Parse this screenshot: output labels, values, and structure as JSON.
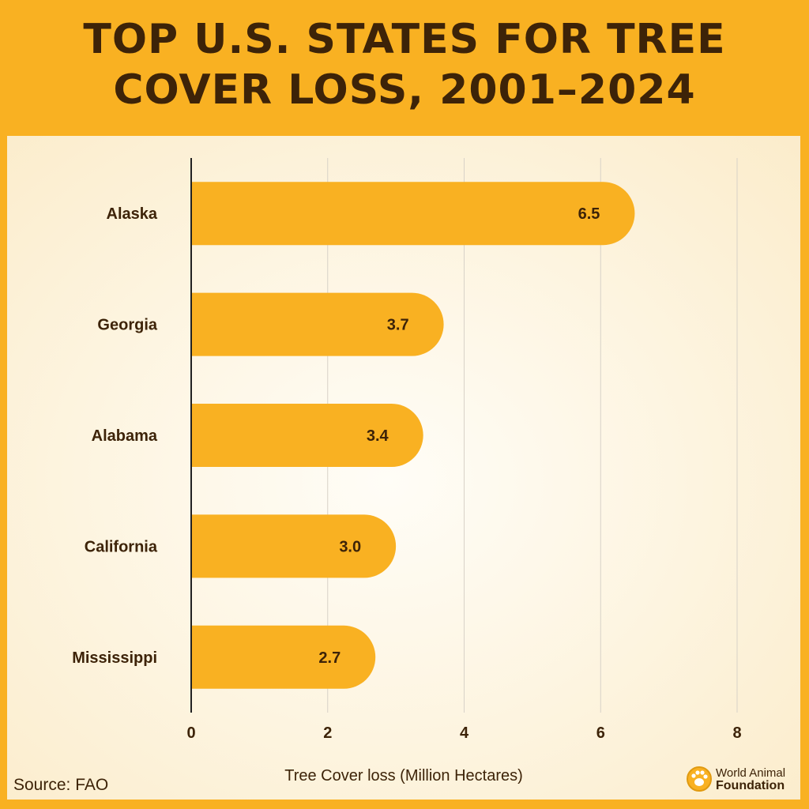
{
  "header": {
    "title": "TOP U.S. STATES FOR TREE COVER LOSS, 2001–2024"
  },
  "footer": {
    "source": "Source: FAO"
  },
  "logo": {
    "line1": "World Animal",
    "line2": "Foundation",
    "icon": "paw-dog-logo-icon"
  },
  "colors": {
    "bar": "#f9b122",
    "text": "#3d2308",
    "axis": "#222222",
    "grid": "#d8d2c8",
    "background": "#f9b122"
  },
  "chart_data": {
    "type": "bar",
    "orientation": "horizontal",
    "title": "TOP U.S. STATES FOR TREE COVER LOSS, 2001–2024",
    "xlabel": "Tree Cover loss (Million Hectares)",
    "ylabel": "",
    "xlim": [
      0,
      8
    ],
    "xticks": [
      "0",
      "2",
      "4",
      "6",
      "8"
    ],
    "grid": "vertical",
    "categories": [
      "Alaska",
      "Georgia",
      "Alabama",
      "California",
      "Mississippi"
    ],
    "values": [
      6.5,
      3.7,
      3.4,
      3.0,
      2.7
    ],
    "value_labels": [
      "6.5",
      "3.7",
      "3.4",
      "3.0",
      "2.7"
    ]
  }
}
